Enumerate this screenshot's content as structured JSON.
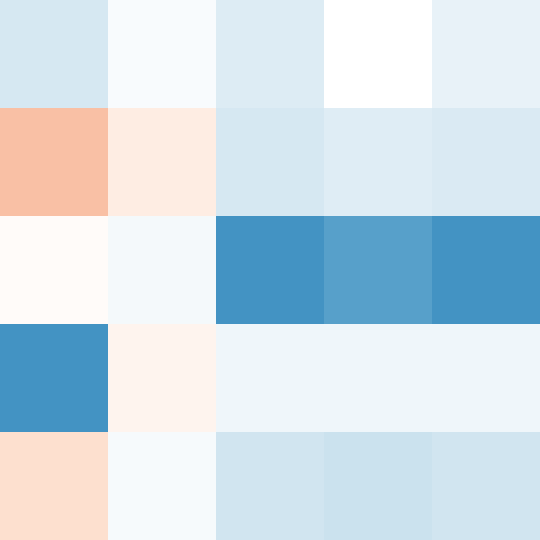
{
  "chart_data": {
    "type": "heatmap",
    "values": [
      [
        -0.18,
        -0.03,
        -0.15,
        0,
        -0.1
      ],
      [
        0.3,
        0.1,
        -0.18,
        -0.14,
        -0.16
      ],
      [
        0.02,
        -0.05,
        -0.6,
        -0.55,
        -0.6
      ],
      [
        -0.6,
        0.06,
        -0.07,
        -0.07,
        -0.07
      ],
      [
        0.17,
        -0.04,
        -0.2,
        -0.22,
        -0.2
      ]
    ],
    "vlim": [
      -1,
      1
    ],
    "colormap": [
      "#053061",
      "#2166ac",
      "#4393c3",
      "#92c5de",
      "#d1e5f0",
      "#ffffff",
      "#fddbc7",
      "#f4a582",
      "#d6604d",
      "#b2182b",
      "#67001f"
    ]
  }
}
